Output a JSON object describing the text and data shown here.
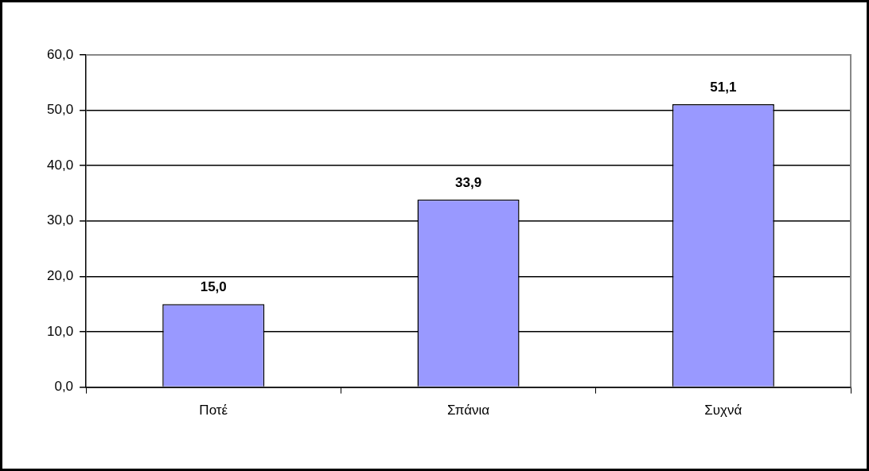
{
  "chart_data": {
    "type": "bar",
    "categories": [
      "Ποτέ",
      "Σπάνια",
      "Συχνά"
    ],
    "values": [
      15.0,
      33.9,
      51.1
    ],
    "value_labels": [
      "15,0",
      "33,9",
      "51,1"
    ],
    "color": "#9999ff",
    "ylim": [
      0,
      60
    ],
    "yticks": [
      {
        "value": 0,
        "label": "0,0"
      },
      {
        "value": 10,
        "label": "10,0"
      },
      {
        "value": 20,
        "label": "20,0"
      },
      {
        "value": 30,
        "label": "30,0"
      },
      {
        "value": 40,
        "label": "40,0"
      },
      {
        "value": 50,
        "label": "50,0"
      },
      {
        "value": 60,
        "label": "60,0"
      }
    ],
    "grid": "y",
    "legend": false
  }
}
